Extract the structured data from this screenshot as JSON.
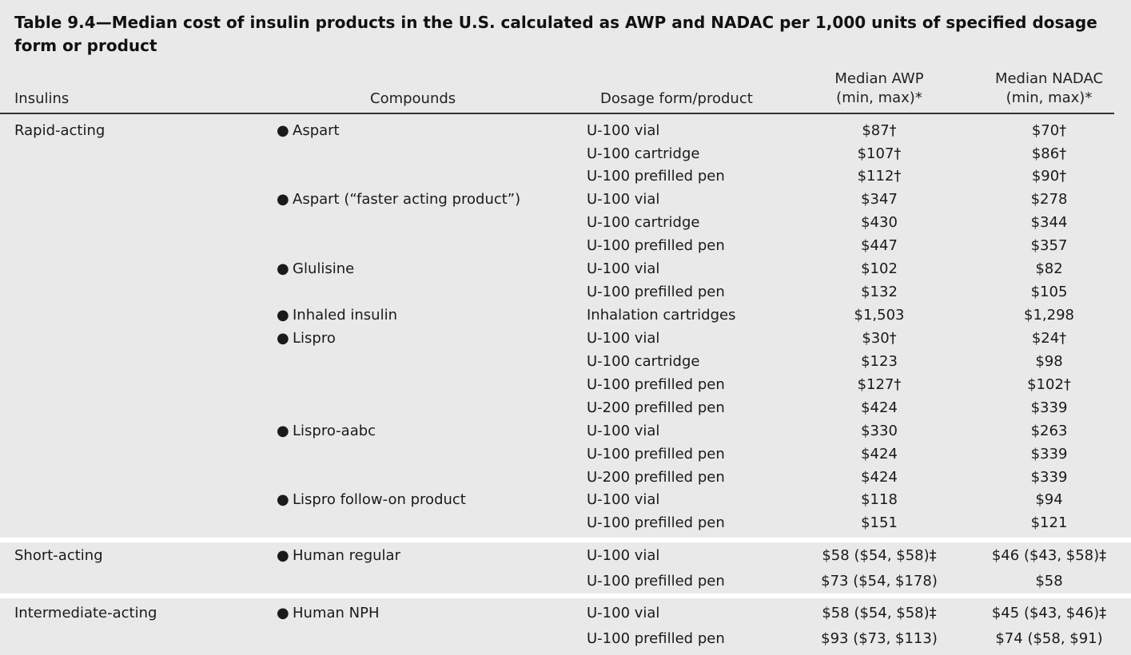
{
  "title": "Table 9.4—Median cost of insulin products in the U.S. calculated as AWP and NADAC per 1,000 units of specified dosage form or product",
  "header": {
    "insulins": "Insulins",
    "compounds": "Compounds",
    "dosage": "Dosage form/product",
    "awp_line1": "Median AWP",
    "awp_line2": "(min, max)*",
    "nadac_line1": "Median NADAC",
    "nadac_line2": "(min, max)*"
  },
  "bullet": "●",
  "rows": [
    {
      "insulin": "Rapid-acting",
      "compound": "Aspart",
      "form": "U-100 vial",
      "awp": "$87†",
      "nadac": "$70†"
    },
    {
      "insulin": "",
      "compound": "",
      "form": "U-100 cartridge",
      "awp": "$107†",
      "nadac": "$86†"
    },
    {
      "insulin": "",
      "compound": "",
      "form": "U-100 prefilled pen",
      "awp": "$112†",
      "nadac": "$90†"
    },
    {
      "insulin": "",
      "compound": "Aspart (“faster acting product”)",
      "form": "U-100 vial",
      "awp": "$347",
      "nadac": "$278"
    },
    {
      "insulin": "",
      "compound": "",
      "form": "U-100 cartridge",
      "awp": "$430",
      "nadac": "$344"
    },
    {
      "insulin": "",
      "compound": "",
      "form": "U-100 prefilled pen",
      "awp": "$447",
      "nadac": "$357"
    },
    {
      "insulin": "",
      "compound": "Glulisine",
      "form": "U-100 vial",
      "awp": "$102",
      "nadac": "$82"
    },
    {
      "insulin": "",
      "compound": "",
      "form": "U-100 prefilled pen",
      "awp": "$132",
      "nadac": "$105"
    },
    {
      "insulin": "",
      "compound": "Inhaled insulin",
      "form": "Inhalation cartridges",
      "awp": "$1,503",
      "nadac": "$1,298"
    },
    {
      "insulin": "",
      "compound": "Lispro",
      "form": "U-100 vial",
      "awp": "$30†",
      "nadac": "$24†"
    },
    {
      "insulin": "",
      "compound": "",
      "form": "U-100 cartridge",
      "awp": "$123",
      "nadac": "$98"
    },
    {
      "insulin": "",
      "compound": "",
      "form": "U-100 prefilled pen",
      "awp": "$127†",
      "nadac": "$102†"
    },
    {
      "insulin": "",
      "compound": "",
      "form": "U-200 prefilled pen",
      "awp": "$424",
      "nadac": "$339"
    },
    {
      "insulin": "",
      "compound": "Lispro-aabc",
      "form": "U-100 vial",
      "awp": "$330",
      "nadac": "$263"
    },
    {
      "insulin": "",
      "compound": "",
      "form": "U-100 prefilled pen",
      "awp": "$424",
      "nadac": "$339"
    },
    {
      "insulin": "",
      "compound": "",
      "form": "U-200 prefilled pen",
      "awp": "$424",
      "nadac": "$339"
    },
    {
      "insulin": "",
      "compound": "Lispro follow-on product",
      "form": "U-100 vial",
      "awp": "$118",
      "nadac": "$94"
    },
    {
      "insulin": "",
      "compound": "",
      "form": "U-100 prefilled pen",
      "awp": "$151",
      "nadac": "$121"
    },
    {
      "insulin": "Short-acting",
      "compound": "Human regular",
      "form": "U-100 vial",
      "awp": "$58 ($54, $58)‡",
      "nadac": "$46 ($43, $58)‡"
    },
    {
      "insulin": "",
      "compound": "",
      "form": "U-100 prefilled pen",
      "awp": "$73 ($54, $178)",
      "nadac": "$58"
    },
    {
      "insulin": "Intermediate-acting",
      "compound": "Human NPH",
      "form": "U-100 vial",
      "awp": "$58 ($54, $58)‡",
      "nadac": "$45 ($43, $46)‡"
    },
    {
      "insulin": "",
      "compound": "",
      "form": "U-100 prefilled pen",
      "awp": "$93 ($73, $113)",
      "nadac": "$74 ($58, $91)"
    }
  ]
}
